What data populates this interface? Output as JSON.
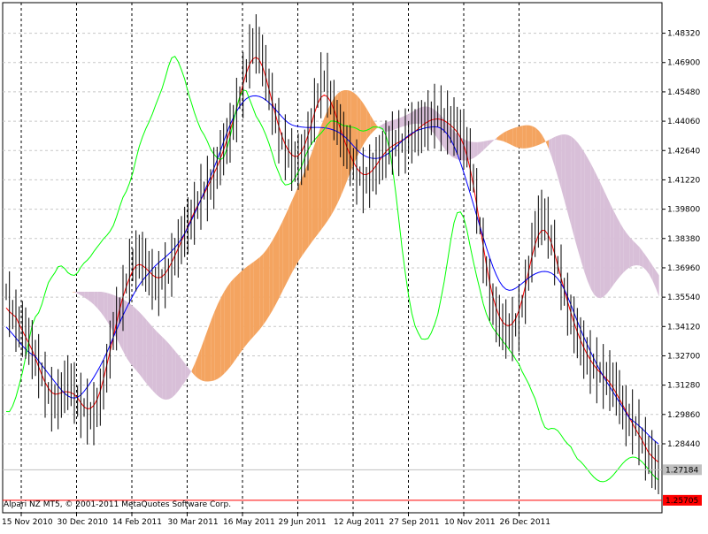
{
  "app": {
    "watermark": "Alpari NZ MT5, © 2001-2011 MetaQuotes Software Corp."
  },
  "chart_data": {
    "type": "line",
    "title": "",
    "xlabel": "",
    "ylabel": "",
    "grid": true,
    "ylim": [
      1.251,
      1.498
    ],
    "x_ticks": [
      "15 Nov 2010",
      "30 Dec 2010",
      "14 Feb 2011",
      "30 Mar 2011",
      "16 May 2011",
      "29 Jun 2011",
      "12 Aug 2011",
      "27 Sep 2011",
      "10 Nov 2011",
      "26 Dec 2011"
    ],
    "y_ticks": [
      1.4832,
      1.469,
      1.4548,
      1.4406,
      1.4264,
      1.4122,
      1.398,
      1.3838,
      1.3696,
      1.3554,
      1.3412,
      1.327,
      1.3128,
      1.2986,
      1.2844
    ],
    "price_labels": [
      {
        "label": "1.27184",
        "value": 1.27184,
        "color": "#c0c0c0"
      },
      {
        "label": "1.25705",
        "value": 1.25705,
        "color": "#ff0000"
      }
    ],
    "colors": {
      "bars": "#000000",
      "tenkan": "#ff0000",
      "kijun": "#0000ff",
      "chikou": "#00ff00",
      "cloud_bull": "#f4a460",
      "cloud_bear": "#d8bfd8",
      "grid": "#000000"
    },
    "bar_count": 240,
    "ohlc_close": [
      1.358,
      1.352,
      1.347,
      1.344,
      1.341,
      1.34,
      1.338,
      1.334,
      1.33,
      1.326,
      1.322,
      1.318,
      1.313,
      1.309,
      1.306,
      1.305,
      1.306,
      1.308,
      1.312,
      1.314,
      1.313,
      1.309,
      1.305,
      1.303,
      1.302,
      1.3,
      1.298,
      1.299,
      1.302,
      1.307,
      1.313,
      1.321,
      1.33,
      1.339,
      1.345,
      1.349,
      1.355,
      1.362,
      1.368,
      1.371,
      1.373,
      1.375,
      1.374,
      1.371,
      1.367,
      1.364,
      1.362,
      1.362,
      1.364,
      1.366,
      1.368,
      1.371,
      1.375,
      1.379,
      1.383,
      1.387,
      1.39,
      1.393,
      1.396,
      1.4,
      1.404,
      1.407,
      1.408,
      1.41,
      1.413,
      1.418,
      1.423,
      1.427,
      1.431,
      1.435,
      1.44,
      1.446,
      1.452,
      1.458,
      1.465,
      1.472,
      1.477,
      1.478,
      1.475,
      1.47,
      1.464,
      1.456,
      1.449,
      1.442,
      1.436,
      1.431,
      1.428,
      1.425,
      1.422,
      1.421,
      1.421,
      1.422,
      1.425,
      1.431,
      1.438,
      1.446,
      1.453,
      1.458,
      1.46,
      1.458,
      1.452,
      1.446,
      1.44,
      1.436,
      1.432,
      1.428,
      1.424,
      1.42,
      1.416,
      1.414,
      1.412,
      1.412,
      1.414,
      1.416,
      1.419,
      1.422,
      1.424,
      1.427,
      1.429,
      1.43,
      1.43,
      1.43,
      1.43,
      1.431,
      1.433,
      1.435,
      1.436,
      1.437,
      1.438,
      1.439,
      1.441,
      1.442,
      1.443,
      1.443,
      1.442,
      1.441,
      1.44,
      1.439,
      1.438,
      1.436,
      1.434,
      1.432,
      1.428,
      1.422,
      1.413,
      1.402,
      1.39,
      1.378,
      1.368,
      1.359,
      1.352,
      1.347,
      1.344,
      1.341,
      1.34,
      1.339,
      1.34,
      1.342,
      1.345,
      1.351,
      1.358,
      1.367,
      1.377,
      1.386,
      1.392,
      1.394,
      1.393,
      1.389,
      1.383,
      1.377,
      1.371,
      1.365,
      1.358,
      1.352,
      1.347,
      1.342,
      1.338,
      1.334,
      1.33,
      1.327,
      1.324,
      1.322,
      1.32,
      1.319,
      1.317,
      1.316,
      1.315,
      1.313,
      1.311,
      1.307,
      1.302,
      1.298,
      1.296,
      1.295,
      1.293,
      1.29,
      1.286,
      1.282,
      1.279,
      1.277,
      1.274,
      1.272
    ]
  }
}
